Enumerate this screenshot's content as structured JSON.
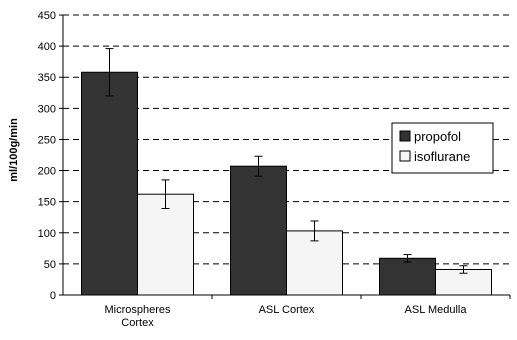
{
  "chart_data": {
    "type": "bar",
    "categories": [
      [
        "Microspheres",
        "Cortex"
      ],
      [
        "ASL Cortex"
      ],
      [
        "ASL Medulla"
      ]
    ],
    "series": [
      {
        "name": "propofol",
        "values": [
          358,
          207,
          59
        ],
        "errors": [
          38,
          16,
          6
        ],
        "color": "#333333"
      },
      {
        "name": "isoflurane",
        "values": [
          162,
          103,
          41
        ],
        "errors": [
          23,
          16,
          6
        ],
        "color": "#f5f5f5"
      }
    ],
    "title": "",
    "xlabel": "",
    "ylabel": "ml/100g/min",
    "ylim": [
      0,
      450
    ],
    "yticks": [
      0,
      50,
      100,
      150,
      200,
      250,
      300,
      350,
      400,
      450
    ],
    "grid": "dashed horizontal",
    "legend": "right"
  }
}
